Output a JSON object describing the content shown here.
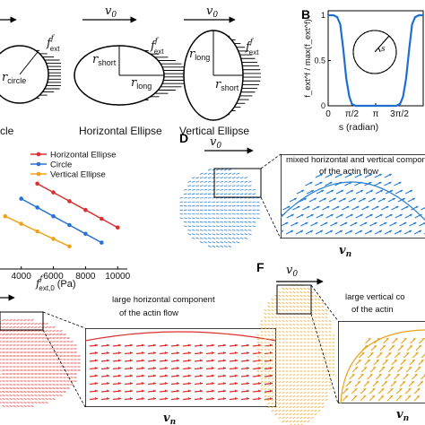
{
  "panel_labels": {
    "b": "B",
    "d": "D",
    "f": "F"
  },
  "panel_a": {
    "v0": "v0",
    "force": "f",
    "force_sup": "f",
    "force_sub": "ext",
    "r_circle": "r",
    "r_circle_sub": "circle",
    "r_short": "r",
    "r_short_sub": "short",
    "r_long": "r",
    "r_long_sub": "long",
    "captions": [
      "cle",
      "Horizontal Ellipse",
      "Vertical Ellipse"
    ]
  },
  "panel_b": {
    "ylabel": "f_ext^f / max(f_ext^f)",
    "xlabel": "s (radian)",
    "inset_label": "s",
    "line_color": "#1f6fd1"
  },
  "panel_c": {
    "xlabel": "f",
    "xlabel_sup": "f",
    "xlabel_sub": "ext,0",
    "xlabel_unit": "(Pa)"
  },
  "panel_d": {
    "v0": "v0",
    "annotation_line1": "mixed horizontal and vertical compon",
    "annotation_line2": "of the actin flow",
    "vn": "vn",
    "color": "#2a7fd4"
  },
  "panel_e": {
    "v0": "v0",
    "annotation_line1": "large horizontal component",
    "annotation_line2": "of the actin flow",
    "vn": "vn",
    "color": "#d93030"
  },
  "panel_f": {
    "v0": "v0",
    "annotation_line1": "large vertical co",
    "annotation_line2": "of the actin",
    "vn": "vn",
    "color": "#e8a21a"
  },
  "chart_data": [
    {
      "type": "line",
      "panel": "B",
      "xlabel": "s (radian)",
      "ylabel": "f_ext^f / max(f_ext^f)",
      "xticks": [
        "0",
        "π/2",
        "π",
        "3π/2"
      ],
      "yticks": [
        "0",
        "0.5",
        "1"
      ],
      "xlim": [
        0,
        6.2832
      ],
      "ylim": [
        0,
        1.05
      ],
      "series": [
        {
          "values": [
            [
              0,
              1
            ],
            [
              0.35,
              1
            ],
            [
              0.6,
              0.98
            ],
            [
              0.8,
              0.9
            ],
            [
              1.0,
              0.62
            ],
            [
              1.2,
              0.3
            ],
            [
              1.4,
              0.1
            ],
            [
              1.57,
              0.02
            ],
            [
              1.8,
              0
            ],
            [
              4.5,
              0
            ],
            [
              4.75,
              0.02
            ],
            [
              4.95,
              0.1
            ],
            [
              5.15,
              0.3
            ],
            [
              5.35,
              0.62
            ],
            [
              5.55,
              0.9
            ],
            [
              5.75,
              0.98
            ],
            [
              6.0,
              1
            ],
            [
              6.2832,
              1
            ]
          ]
        }
      ]
    },
    {
      "type": "line",
      "panel": "C",
      "xlabel": "f_ext,0^f (Pa)",
      "xticks": [
        4000,
        6000,
        8000,
        10000
      ],
      "xlim": [
        2400,
        10600
      ],
      "ylim": [
        0,
        1
      ],
      "series": [
        {
          "name": "Horizontal Ellipse",
          "color": "#d93030",
          "x": [
            5000,
            6000,
            7000,
            8000,
            9000,
            10000
          ],
          "y": [
            0.68,
            0.61,
            0.54,
            0.47,
            0.4,
            0.33
          ]
        },
        {
          "name": "Circle",
          "color": "#2a72d6",
          "x": [
            4000,
            5000,
            6000,
            7000,
            8000,
            9000
          ],
          "y": [
            0.56,
            0.49,
            0.42,
            0.35,
            0.28,
            0.21
          ]
        },
        {
          "name": "Vertical Ellipse",
          "color": "#f0a11c",
          "x": [
            3000,
            4000,
            5000,
            6000,
            7000
          ],
          "y": [
            0.42,
            0.36,
            0.3,
            0.24,
            0.18
          ]
        }
      ]
    }
  ]
}
